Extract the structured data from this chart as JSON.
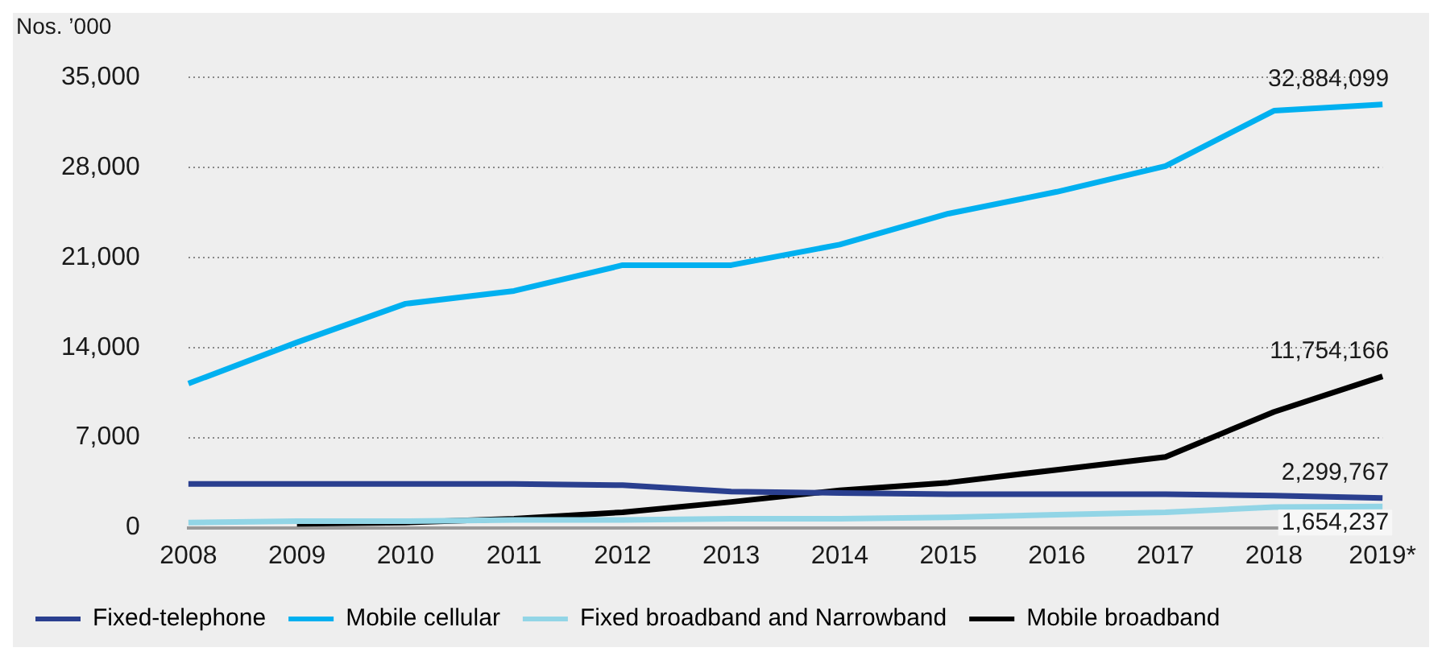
{
  "chart_data": {
    "type": "line",
    "ylabel": "Nos. ’000",
    "categories": [
      "2008",
      "2009",
      "2010",
      "2011",
      "2012",
      "2013",
      "2014",
      "2015",
      "2016",
      "2017",
      "2018",
      "2019*"
    ],
    "ylim": [
      0,
      35000
    ],
    "yticks": [
      {
        "value": 0,
        "label": "0"
      },
      {
        "value": 7000,
        "label": "7,000"
      },
      {
        "value": 14000,
        "label": "14,000"
      },
      {
        "value": 21000,
        "label": "21,000"
      },
      {
        "value": 28000,
        "label": "28,000"
      },
      {
        "value": 35000,
        "label": "35,000"
      }
    ],
    "annotations": [
      "2,299,767",
      "32,884,099",
      "1,654,237",
      "11,754,166"
    ],
    "grid": "y",
    "legend": "bottom",
    "marker": "none",
    "line_style": "solid",
    "series": [
      {
        "name": "Fixed-telephone",
        "color": "#2a3f8f",
        "values": [
          3400,
          3400,
          3400,
          3400,
          3300,
          2800,
          2700,
          2600,
          2600,
          2600,
          2500,
          2299.767
        ]
      },
      {
        "name": "Mobile cellular",
        "color": "#00b0f0",
        "values": [
          11200,
          14400,
          17400,
          18400,
          20400,
          20400,
          22000,
          24400,
          26100,
          28100,
          32400,
          32884.099
        ]
      },
      {
        "name": "Fixed broadband and Narrowband",
        "color": "#92d5e6",
        "values": [
          400,
          500,
          500,
          600,
          600,
          700,
          700,
          800,
          1000,
          1200,
          1600,
          1654.237
        ]
      },
      {
        "name": "Mobile broadband",
        "color": "#000000",
        "values": [
          null,
          300,
          400,
          700,
          1200,
          2000,
          2900,
          3500,
          4500,
          5500,
          9000,
          11754.166
        ]
      }
    ]
  }
}
